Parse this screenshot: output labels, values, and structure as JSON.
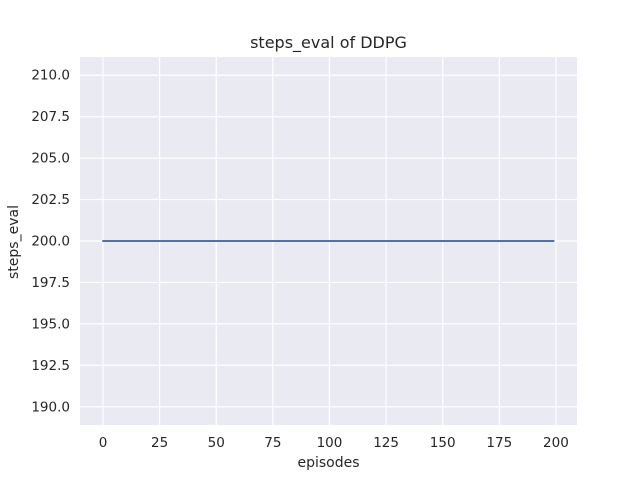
{
  "chart_data": {
    "type": "line",
    "title": "steps_eval of DDPG",
    "xlabel": "episodes",
    "ylabel": "steps_eval",
    "x_ticks": [
      0,
      25,
      50,
      75,
      100,
      125,
      150,
      175,
      200
    ],
    "x_tick_labels": [
      "0",
      "25",
      "50",
      "75",
      "100",
      "125",
      "150",
      "175",
      "200"
    ],
    "y_ticks": [
      190.0,
      192.5,
      195.0,
      197.5,
      200.0,
      202.5,
      205.0,
      207.5,
      210.0
    ],
    "y_tick_labels": [
      "190.0",
      "192.5",
      "195.0",
      "197.5",
      "200.0",
      "202.5",
      "205.0",
      "207.5",
      "210.0"
    ],
    "xlim": [
      -10.15,
      209.3
    ],
    "ylim": [
      188.9,
      211.1
    ],
    "grid": true,
    "legend_position": "none",
    "series": [
      {
        "name": "steps_eval",
        "color": "#4C72B0",
        "x": [
          0,
          199
        ],
        "y": [
          200.0,
          200.0
        ]
      }
    ],
    "styles": {
      "figure_bg": "#FFFFFF",
      "plot_bg": "#EAEAF2",
      "grid_color": "#FFFFFF",
      "text_color": "#262626"
    }
  }
}
